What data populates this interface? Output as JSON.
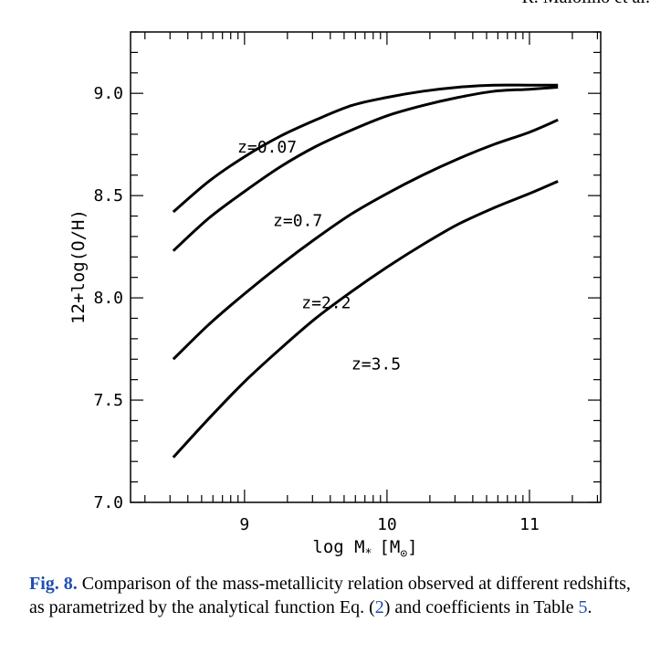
{
  "running_head": "R. Maiolino et al.",
  "chart_data": {
    "type": "line",
    "xlabel": "log M",
    "xlabel_sub": "*",
    "xlabel_unit": "[M",
    "xlabel_unit_sub": "⊙",
    "xlabel_unit_close": "]",
    "ylabel": "12+log(O/H)",
    "xlim": [
      8.2,
      11.5
    ],
    "ylim": [
      7.0,
      9.3
    ],
    "x_major_ticks": [
      9,
      10,
      11
    ],
    "x_tick_labels": [
      "9",
      "10",
      "11"
    ],
    "y_major_ticks": [
      7.0,
      7.5,
      8.0,
      8.5,
      9.0
    ],
    "y_tick_labels": [
      "7.0",
      "7.5",
      "8.0",
      "8.5",
      "9.0"
    ],
    "grid": false,
    "series": [
      {
        "name": "z=0.07",
        "x": [
          8.5,
          8.75,
          9.0,
          9.25,
          9.5,
          9.75,
          10.0,
          10.25,
          10.5,
          10.75,
          11.0,
          11.2
        ],
        "y": [
          8.42,
          8.57,
          8.69,
          8.79,
          8.87,
          8.94,
          8.98,
          9.01,
          9.03,
          9.04,
          9.04,
          9.04
        ]
      },
      {
        "name": "z=0.7",
        "x": [
          8.5,
          8.75,
          9.0,
          9.25,
          9.5,
          9.75,
          10.0,
          10.25,
          10.5,
          10.75,
          11.0,
          11.2
        ],
        "y": [
          8.23,
          8.39,
          8.52,
          8.64,
          8.74,
          8.82,
          8.89,
          8.94,
          8.98,
          9.01,
          9.02,
          9.03
        ]
      },
      {
        "name": "z=2.2",
        "x": [
          8.5,
          8.75,
          9.0,
          9.25,
          9.5,
          9.75,
          10.0,
          10.25,
          10.5,
          10.75,
          11.0,
          11.2
        ],
        "y": [
          7.7,
          7.87,
          8.02,
          8.16,
          8.29,
          8.41,
          8.51,
          8.6,
          8.68,
          8.75,
          8.81,
          8.87
        ]
      },
      {
        "name": "z=3.5",
        "x": [
          8.5,
          8.75,
          9.0,
          9.25,
          9.5,
          9.75,
          10.0,
          10.25,
          10.5,
          10.75,
          11.0,
          11.2
        ],
        "y": [
          7.22,
          7.41,
          7.59,
          7.75,
          7.9,
          8.03,
          8.15,
          8.26,
          8.36,
          8.44,
          8.51,
          8.57
        ]
      }
    ]
  },
  "caption": {
    "fig_label": "Fig. 8.",
    "text_1": " Comparison of the mass-metallicity relation observed at different redshifts, as parametrized by the analytical function Eq. (",
    "eq_ref": "2",
    "text_2": ") and coefficients in Table ",
    "table_ref": "5",
    "text_3": "."
  }
}
